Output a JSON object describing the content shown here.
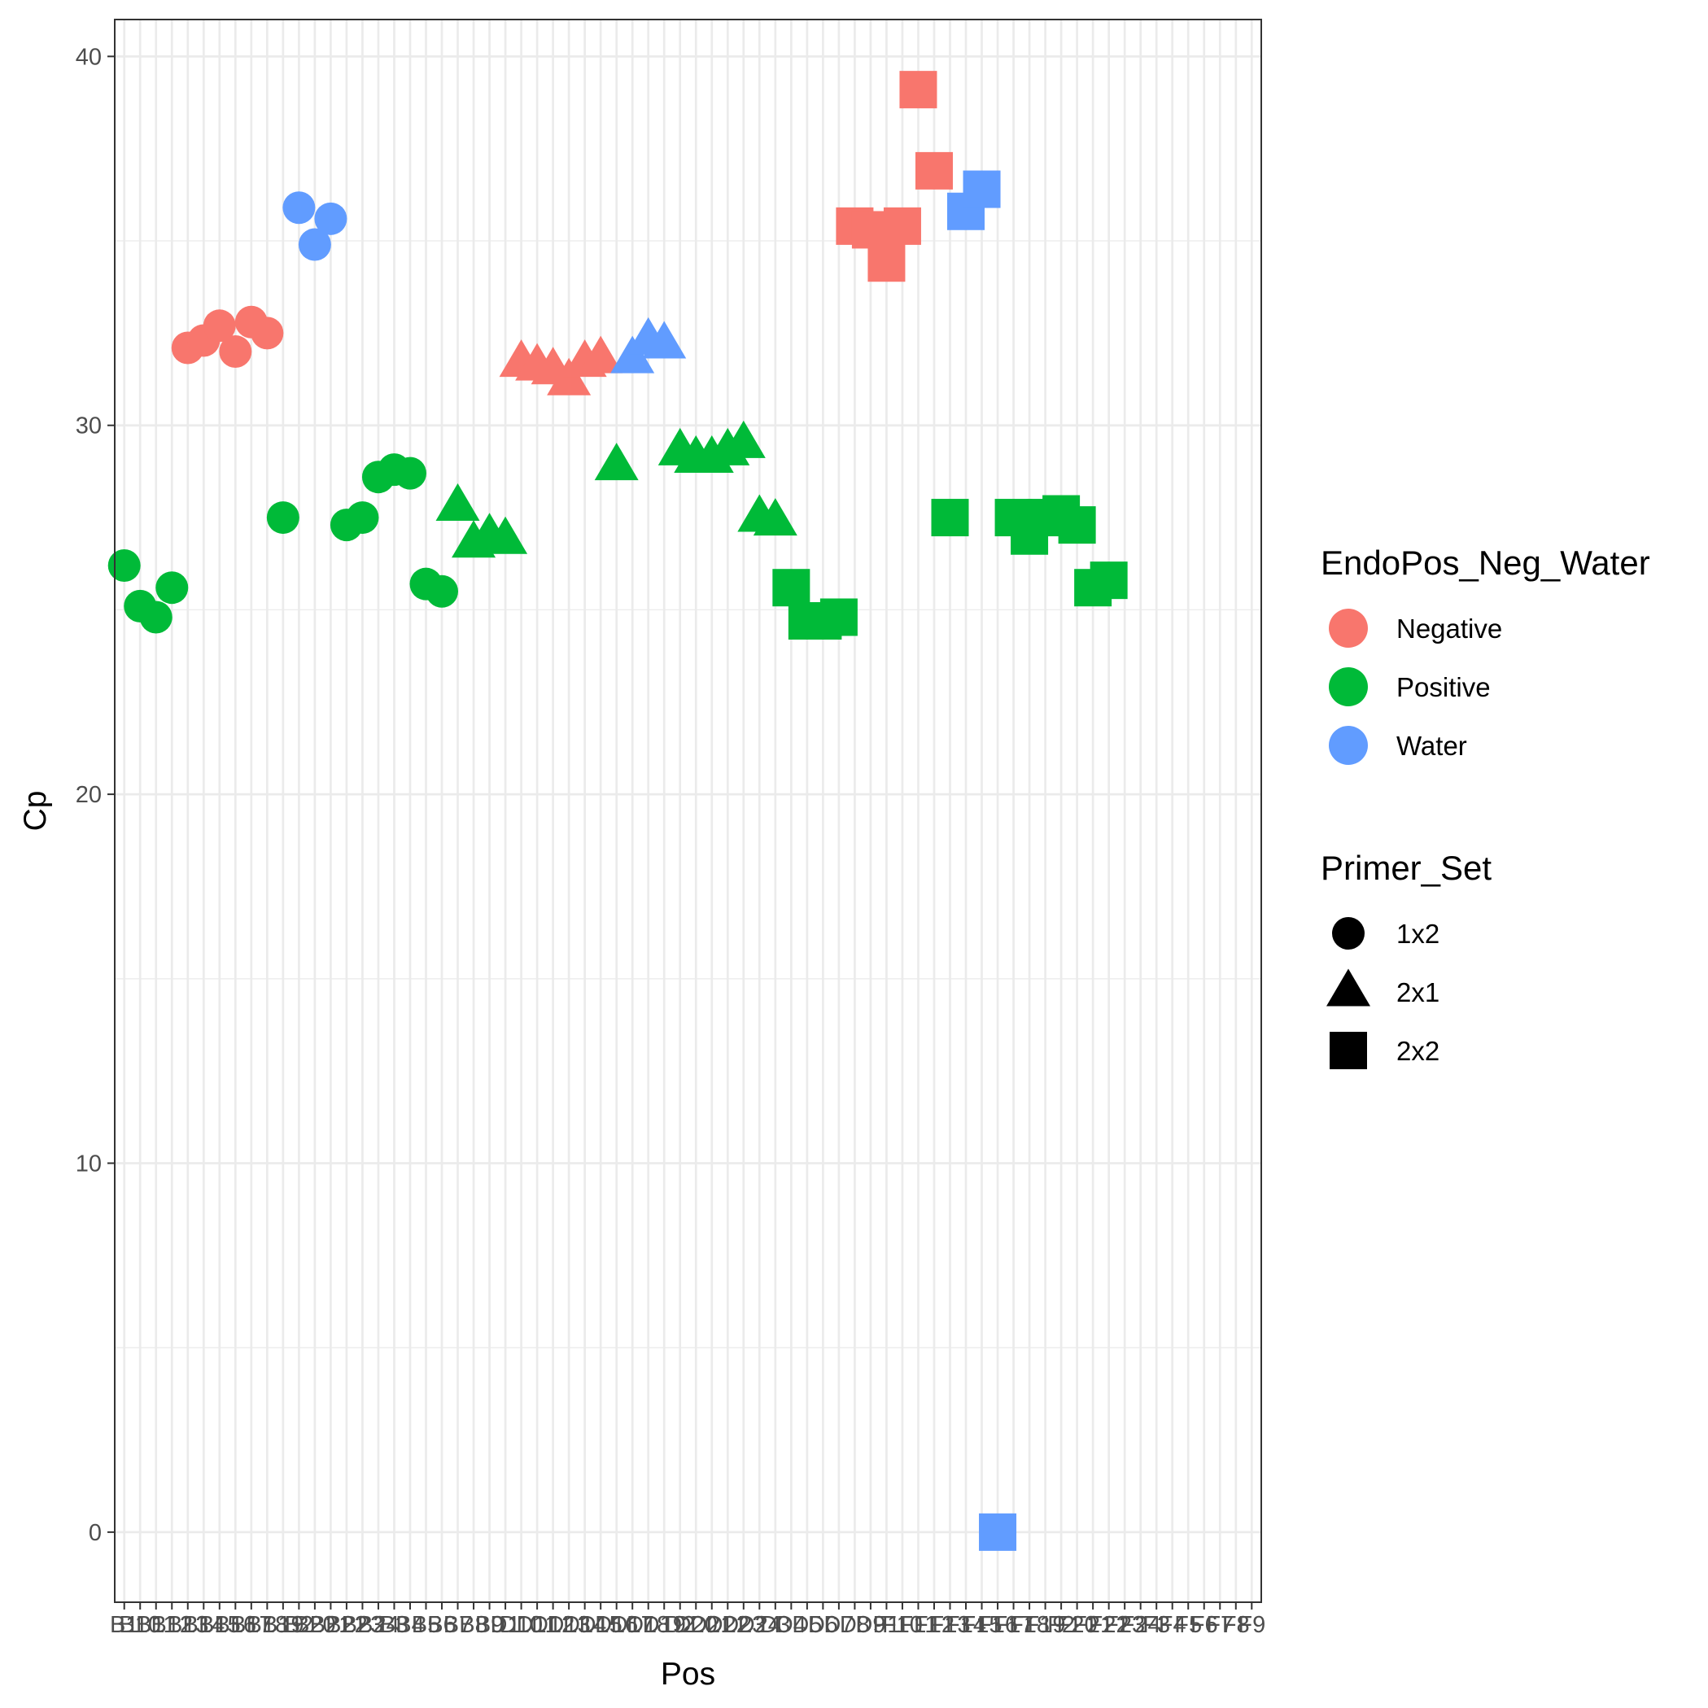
{
  "chart_data": {
    "type": "scatter",
    "xlabel": "Pos",
    "ylabel": "Cp",
    "ylim": [
      -1.9,
      41
    ],
    "yticks": [
      0,
      10,
      20,
      30,
      40
    ],
    "grid": true,
    "legend_placement": "right",
    "x_categories": [
      "B1",
      "B10",
      "B11",
      "B12",
      "B13",
      "B14",
      "B15",
      "B16",
      "B17",
      "B18",
      "B19",
      "B2",
      "B20",
      "B21",
      "B22",
      "B23",
      "B24",
      "B3",
      "B4",
      "B5",
      "B6",
      "B7",
      "B8",
      "B9",
      "D1",
      "D10",
      "D11",
      "D12",
      "D13",
      "D14",
      "D15",
      "D16",
      "D17",
      "D18",
      "D19",
      "D2",
      "D20",
      "D21",
      "D22",
      "D23",
      "D24",
      "D3",
      "D4",
      "D5",
      "D6",
      "D7",
      "D8",
      "D9",
      "F1",
      "F10",
      "F11",
      "F12",
      "F13",
      "F14",
      "F15",
      "F16",
      "F17",
      "F18",
      "F19",
      "F2",
      "F20",
      "F21",
      "F22",
      "F23",
      "F24",
      "F3",
      "F4",
      "F5",
      "F6",
      "F7",
      "F8",
      "F9"
    ],
    "color_legend": {
      "title": "EndoPos_Neg_Water",
      "entries": [
        {
          "label": "Negative",
          "color": "#F8766D"
        },
        {
          "label": "Positive",
          "color": "#00BA38"
        },
        {
          "label": "Water",
          "color": "#619CFF"
        }
      ]
    },
    "shape_legend": {
      "title": "Primer_Set",
      "entries": [
        {
          "label": "1x2",
          "shape": "circle"
        },
        {
          "label": "2x1",
          "shape": "triangle"
        },
        {
          "label": "2x2",
          "shape": "square"
        }
      ]
    },
    "points": [
      {
        "x": 0,
        "y": 26.2,
        "group": "Positive",
        "shape": "circle"
      },
      {
        "x": 1,
        "y": 25.1,
        "group": "Positive",
        "shape": "circle"
      },
      {
        "x": 2,
        "y": 24.8,
        "group": "Positive",
        "shape": "circle"
      },
      {
        "x": 3,
        "y": 25.6,
        "group": "Positive",
        "shape": "circle"
      },
      {
        "x": 4,
        "y": 32.1,
        "group": "Negative",
        "shape": "circle"
      },
      {
        "x": 5,
        "y": 32.3,
        "group": "Negative",
        "shape": "circle"
      },
      {
        "x": 6,
        "y": 32.7,
        "group": "Negative",
        "shape": "circle"
      },
      {
        "x": 7,
        "y": 32.0,
        "group": "Negative",
        "shape": "circle"
      },
      {
        "x": 8,
        "y": 32.8,
        "group": "Negative",
        "shape": "circle"
      },
      {
        "x": 9,
        "y": 32.5,
        "group": "Negative",
        "shape": "circle"
      },
      {
        "x": 10,
        "y": 27.5,
        "group": "Positive",
        "shape": "circle"
      },
      {
        "x": 11,
        "y": 35.9,
        "group": "Water",
        "shape": "circle"
      },
      {
        "x": 12,
        "y": 34.9,
        "group": "Water",
        "shape": "circle"
      },
      {
        "x": 13,
        "y": 35.6,
        "group": "Water",
        "shape": "circle"
      },
      {
        "x": 14,
        "y": 27.3,
        "group": "Positive",
        "shape": "circle"
      },
      {
        "x": 15,
        "y": 27.5,
        "group": "Positive",
        "shape": "circle"
      },
      {
        "x": 16,
        "y": 28.6,
        "group": "Positive",
        "shape": "circle"
      },
      {
        "x": 17,
        "y": 28.8,
        "group": "Positive",
        "shape": "circle"
      },
      {
        "x": 18,
        "y": 28.7,
        "group": "Positive",
        "shape": "circle"
      },
      {
        "x": 19,
        "y": 25.7,
        "group": "Positive",
        "shape": "circle"
      },
      {
        "x": 20,
        "y": 25.5,
        "group": "Positive",
        "shape": "circle"
      },
      {
        "x": 21,
        "y": 27.8,
        "group": "Positive",
        "shape": "triangle"
      },
      {
        "x": 22,
        "y": 26.8,
        "group": "Positive",
        "shape": "triangle"
      },
      {
        "x": 23,
        "y": 27.0,
        "group": "Positive",
        "shape": "triangle"
      },
      {
        "x": 24,
        "y": 26.9,
        "group": "Positive",
        "shape": "triangle"
      },
      {
        "x": 25,
        "y": 31.7,
        "group": "Negative",
        "shape": "triangle"
      },
      {
        "x": 26,
        "y": 31.6,
        "group": "Negative",
        "shape": "triangle"
      },
      {
        "x": 27,
        "y": 31.5,
        "group": "Negative",
        "shape": "triangle"
      },
      {
        "x": 28,
        "y": 31.2,
        "group": "Negative",
        "shape": "triangle"
      },
      {
        "x": 29,
        "y": 31.7,
        "group": "Negative",
        "shape": "triangle"
      },
      {
        "x": 30,
        "y": 31.8,
        "group": "Negative",
        "shape": "triangle"
      },
      {
        "x": 31,
        "y": 28.9,
        "group": "Positive",
        "shape": "triangle"
      },
      {
        "x": 32,
        "y": 31.8,
        "group": "Water",
        "shape": "triangle"
      },
      {
        "x": 33,
        "y": 32.3,
        "group": "Water",
        "shape": "triangle"
      },
      {
        "x": 34,
        "y": 32.2,
        "group": "Water",
        "shape": "triangle"
      },
      {
        "x": 35,
        "y": 29.3,
        "group": "Positive",
        "shape": "triangle"
      },
      {
        "x": 36,
        "y": 29.1,
        "group": "Positive",
        "shape": "triangle"
      },
      {
        "x": 37,
        "y": 29.1,
        "group": "Positive",
        "shape": "triangle"
      },
      {
        "x": 38,
        "y": 29.3,
        "group": "Positive",
        "shape": "triangle"
      },
      {
        "x": 39,
        "y": 29.5,
        "group": "Positive",
        "shape": "triangle"
      },
      {
        "x": 40,
        "y": 27.5,
        "group": "Positive",
        "shape": "triangle"
      },
      {
        "x": 41,
        "y": 27.4,
        "group": "Positive",
        "shape": "triangle"
      },
      {
        "x": 42,
        "y": 25.6,
        "group": "Positive",
        "shape": "square"
      },
      {
        "x": 43,
        "y": 24.7,
        "group": "Positive",
        "shape": "square"
      },
      {
        "x": 44,
        "y": 24.7,
        "group": "Positive",
        "shape": "square"
      },
      {
        "x": 45,
        "y": 24.8,
        "group": "Positive",
        "shape": "square"
      },
      {
        "x": 46,
        "y": 35.4,
        "group": "Negative",
        "shape": "square"
      },
      {
        "x": 47,
        "y": 35.3,
        "group": "Negative",
        "shape": "square"
      },
      {
        "x": 48,
        "y": 34.4,
        "group": "Negative",
        "shape": "square"
      },
      {
        "x": 49,
        "y": 35.4,
        "group": "Negative",
        "shape": "square"
      },
      {
        "x": 50,
        "y": 39.1,
        "group": "Negative",
        "shape": "square"
      },
      {
        "x": 51,
        "y": 36.9,
        "group": "Negative",
        "shape": "square"
      },
      {
        "x": 52,
        "y": 27.5,
        "group": "Positive",
        "shape": "square"
      },
      {
        "x": 53,
        "y": 35.8,
        "group": "Water",
        "shape": "square"
      },
      {
        "x": 54,
        "y": 36.4,
        "group": "Water",
        "shape": "square"
      },
      {
        "x": 55,
        "y": 0.0,
        "group": "Water",
        "shape": "square"
      },
      {
        "x": 56,
        "y": 27.5,
        "group": "Positive",
        "shape": "square"
      },
      {
        "x": 57,
        "y": 27.0,
        "group": "Positive",
        "shape": "square"
      },
      {
        "x": 58,
        "y": 27.5,
        "group": "Positive",
        "shape": "square"
      },
      {
        "x": 59,
        "y": 27.6,
        "group": "Positive",
        "shape": "square"
      },
      {
        "x": 60,
        "y": 27.3,
        "group": "Positive",
        "shape": "square"
      },
      {
        "x": 61,
        "y": 25.6,
        "group": "Positive",
        "shape": "square"
      },
      {
        "x": 62,
        "y": 25.8,
        "group": "Positive",
        "shape": "square"
      }
    ]
  }
}
